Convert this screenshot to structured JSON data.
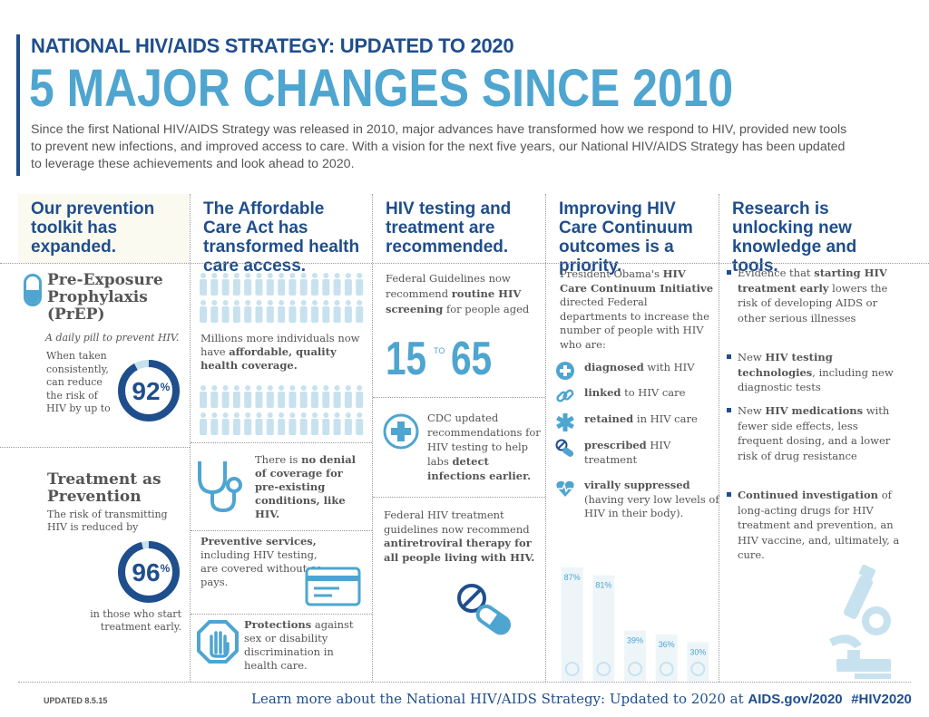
{
  "header": {
    "kicker": "NATIONAL HIV/AIDS STRATEGY: UPDATED TO 2020",
    "title": "5 MAJOR CHANGES SINCE 2010",
    "intro": "Since the first National HIV/AIDS Strategy was released in 2010, major advances have transformed how we respond to HIV, provided new tools to prevent new infections, and improved access to care. With a vision for the next five years, our National HIV/AIDS Strategy has been updated to leverage these achievements and look ahead to 2020."
  },
  "columns": {
    "c1": {
      "heading": "Our prevention toolkit has expanded."
    },
    "c2": {
      "heading": "The Affordable Care Act has transformed health care access."
    },
    "c3": {
      "heading": "HIV testing and treatment are recommended."
    },
    "c4": {
      "heading": "Improving HIV Care Continuum outcomes is a priority."
    },
    "c5": {
      "heading": "Research is unlocking new knowledge and tools."
    }
  },
  "prevention": {
    "prep_title": "Pre-Exposure Prophylaxis (PrEP)",
    "prep_sub": "A daily pill to prevent HIV.",
    "prep_desc": "When taken consistently, can reduce the risk of HIV by up to",
    "prep_value": "92",
    "prep_fraction": 0.92,
    "tap_title": "Treatment as Prevention",
    "tap_desc": "The risk of transmitting HIV is reduced by",
    "tap_value": "96",
    "tap_fraction": 0.96,
    "tap_after": "in those who start treatment early.",
    "percent_sign": "%"
  },
  "aca": {
    "desc_pre": "Millions more individuals now have ",
    "desc_bold": "affordable, quality health coverage.",
    "denial_pre": "There is ",
    "denial_bold": "no denial of coverage for pre-existing conditions, like HIV.",
    "prev_bold": "Preventive services,",
    "prev_rest": " including HIV testing, are covered without co-pays.",
    "protect_bold": "Protections",
    "protect_rest": " against sex or disability discrimination in health care."
  },
  "testing": {
    "text_pre": "Federal Guidelines now recommend ",
    "text_bold": "routine HIV screening",
    "text_post": " for people aged",
    "age_from": "15",
    "age_mid": "TO",
    "age_to": "65",
    "cdc_pre": "CDC updated recommendations for HIV testing to help labs ",
    "cdc_bold": "detect infections earlier.",
    "tx_pre": "Federal HIV treatment guidelines now recommend ",
    "tx_bold": "antiretroviral therapy for all people living with HIV."
  },
  "continuum": {
    "intro_pre": "President Obama's ",
    "intro_bold": "HIV Care Continuum Initiative",
    "intro_post": " directed Federal departments to increase the number of people with HIV who are:",
    "steps": [
      {
        "bold": "diagnosed",
        "rest": " with HIV",
        "icon": "plus-icon"
      },
      {
        "bold": "linked",
        "rest": " to HIV care",
        "icon": "link-icon"
      },
      {
        "bold": "retained",
        "rest": " in HIV care",
        "icon": "medical-star-icon"
      },
      {
        "bold": "prescribed",
        "rest": " HIV treatment",
        "icon": "pill-icon"
      },
      {
        "bold": "virally suppressed",
        "rest": " (having very low levels of HIV in their body).",
        "icon": "heart-pulse-icon"
      }
    ]
  },
  "chart_data": {
    "type": "bar",
    "categories": [
      "diagnosed",
      "linked",
      "retained",
      "prescribed",
      "virally suppressed"
    ],
    "values": [
      87,
      81,
      39,
      36,
      30
    ],
    "labels": [
      "87%",
      "81%",
      "39%",
      "36%",
      "30%"
    ],
    "ylim": [
      0,
      100
    ]
  },
  "research": {
    "items": [
      {
        "pre": "Evidence that ",
        "bold": "starting HIV treatment early",
        "post": " lowers the risk of developing AIDS or other serious illnesses"
      },
      {
        "pre": "New ",
        "bold": "HIV testing technologies",
        "post": ", including new diagnostic tests"
      },
      {
        "pre": "New ",
        "bold": "HIV medications",
        "post": " with fewer side effects, less frequent dosing, and a lower risk of drug resistance"
      },
      {
        "pre": "",
        "bold": "Continued investigation",
        "post": " of long-acting drugs for HIV treatment and prevention, an HIV vaccine, and, ultimately, a cure."
      }
    ]
  },
  "footer": {
    "updated": "UPDATED 8.5.15",
    "learn_pre": "Learn more about the National HIV/AIDS Strategy: Updated to 2020 at ",
    "learn_link": "AIDS.gov/2020",
    "hashtag": "#HIV2020"
  },
  "colors": {
    "navy": "#1f4e8c",
    "blue": "#4ea5d0",
    "light": "#c7e1ef",
    "text": "#555555"
  }
}
